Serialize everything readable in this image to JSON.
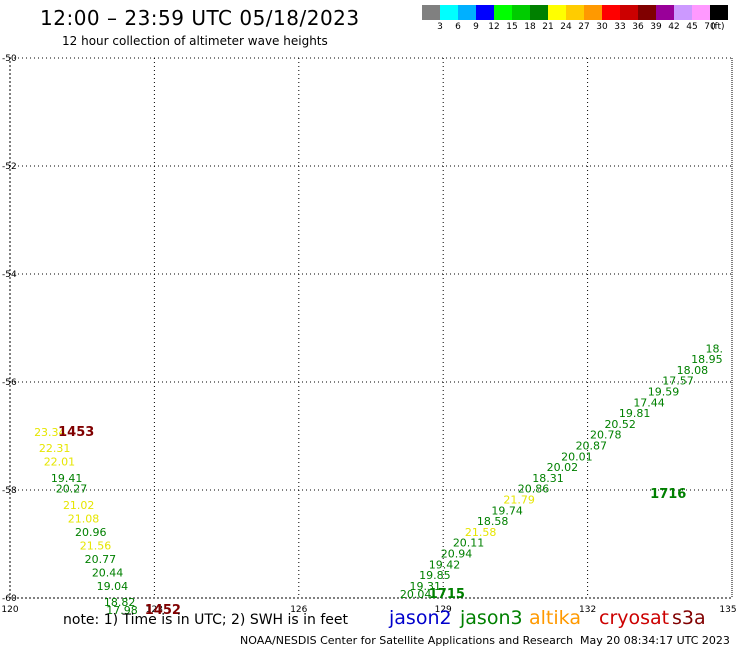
{
  "header": {
    "title": "12:00 – 23:59 UTC 05/18/2023",
    "subtitle": "12 hour collection of altimeter wave heights"
  },
  "colorbar": {
    "swatches": [
      "#808080",
      "#00ffff",
      "#00b0ff",
      "#0000ff",
      "#00ff00",
      "#00cc00",
      "#008000",
      "#ffff00",
      "#ffcc00",
      "#ff9900",
      "#ff0000",
      "#cc0000",
      "#800000",
      "#990099",
      "#cc99ff",
      "#ff99ff",
      "#000000"
    ],
    "labels": [
      "3",
      "6",
      "9",
      "12",
      "15",
      "18",
      "21",
      "24",
      "27",
      "30",
      "33",
      "36",
      "39",
      "42",
      "45",
      "70"
    ],
    "unit": "(ft)"
  },
  "map": {
    "lon_range": [
      120,
      135
    ],
    "lat_range": [
      -60,
      -50
    ],
    "lon_ticks": [
      "120",
      "123",
      "126",
      "129",
      "132",
      "135"
    ],
    "lat_ticks": [
      "-50",
      "-52",
      "-54",
      "-56",
      "-58",
      "-60"
    ],
    "grid": "dotted",
    "track_left": [
      {
        "lon": 120.5,
        "lat": -57.0,
        "v": "23.34",
        "c": "#e6e600"
      },
      {
        "lon": 120.6,
        "lat": -57.3,
        "v": "22.31",
        "c": "#e6e600"
      },
      {
        "lon": 120.7,
        "lat": -57.55,
        "v": "22.01",
        "c": "#e6e600"
      },
      {
        "lon": 120.85,
        "lat": -57.85,
        "v": "19.41",
        "c": "#008000"
      },
      {
        "lon": 120.95,
        "lat": -58.05,
        "v": "20.27",
        "c": "#008000"
      },
      {
        "lon": 121.1,
        "lat": -58.35,
        "v": "21.02",
        "c": "#e6e600"
      },
      {
        "lon": 121.2,
        "lat": -58.6,
        "v": "21.08",
        "c": "#e6e600"
      },
      {
        "lon": 121.35,
        "lat": -58.85,
        "v": "20.96",
        "c": "#008000"
      },
      {
        "lon": 121.45,
        "lat": -59.1,
        "v": "21.56",
        "c": "#e6e600"
      },
      {
        "lon": 121.55,
        "lat": -59.35,
        "v": "20.77",
        "c": "#008000"
      },
      {
        "lon": 121.7,
        "lat": -59.6,
        "v": "20.44",
        "c": "#008000"
      },
      {
        "lon": 121.8,
        "lat": -59.85,
        "v": "19.04",
        "c": "#008000"
      },
      {
        "lon": 121.95,
        "lat": -60.15,
        "v": "18.82",
        "c": "#008000"
      },
      {
        "lon": 122.0,
        "lat": -60.3,
        "v": "17.98",
        "c": "#008000"
      }
    ],
    "track_right": [
      {
        "lon": 128.1,
        "lat": -60.0,
        "v": "20.04",
        "c": "#008000"
      },
      {
        "lon": 128.3,
        "lat": -59.85,
        "v": "19.31",
        "c": "#008000"
      },
      {
        "lon": 128.5,
        "lat": -59.65,
        "v": "19.85",
        "c": "#008000"
      },
      {
        "lon": 128.7,
        "lat": -59.45,
        "v": "19.42",
        "c": "#008000"
      },
      {
        "lon": 128.95,
        "lat": -59.25,
        "v": "20.94",
        "c": "#008000"
      },
      {
        "lon": 129.2,
        "lat": -59.05,
        "v": "20.11",
        "c": "#008000"
      },
      {
        "lon": 129.45,
        "lat": -58.85,
        "v": "21.58",
        "c": "#e6e600"
      },
      {
        "lon": 129.7,
        "lat": -58.65,
        "v": "18.58",
        "c": "#008000"
      },
      {
        "lon": 130.0,
        "lat": -58.45,
        "v": "19.74",
        "c": "#008000"
      },
      {
        "lon": 130.25,
        "lat": -58.25,
        "v": "21.79",
        "c": "#e6e600"
      },
      {
        "lon": 130.55,
        "lat": -58.05,
        "v": "20.86",
        "c": "#008000"
      },
      {
        "lon": 130.85,
        "lat": -57.85,
        "v": "18.31",
        "c": "#008000"
      },
      {
        "lon": 131.15,
        "lat": -57.65,
        "v": "20.02",
        "c": "#008000"
      },
      {
        "lon": 131.45,
        "lat": -57.45,
        "v": "20.01",
        "c": "#008000"
      },
      {
        "lon": 131.75,
        "lat": -57.25,
        "v": "20.87",
        "c": "#008000"
      },
      {
        "lon": 132.05,
        "lat": -57.05,
        "v": "20.78",
        "c": "#008000"
      },
      {
        "lon": 132.35,
        "lat": -56.85,
        "v": "20.52",
        "c": "#008000"
      },
      {
        "lon": 132.65,
        "lat": -56.65,
        "v": "19.81",
        "c": "#008000"
      },
      {
        "lon": 132.95,
        "lat": -56.45,
        "v": "17.44",
        "c": "#008000"
      },
      {
        "lon": 133.25,
        "lat": -56.25,
        "v": "19.59",
        "c": "#008000"
      },
      {
        "lon": 133.55,
        "lat": -56.05,
        "v": "17.57",
        "c": "#008000"
      },
      {
        "lon": 133.85,
        "lat": -55.85,
        "v": "18.08",
        "c": "#008000"
      },
      {
        "lon": 134.15,
        "lat": -55.65,
        "v": "18.95",
        "c": "#008000"
      },
      {
        "lon": 134.45,
        "lat": -55.45,
        "v": "18.",
        "c": "#008000"
      }
    ],
    "time_labels": [
      {
        "lon": 121.0,
        "lat": -57.0,
        "t": "1453",
        "c": "#800000"
      },
      {
        "lon": 122.8,
        "lat": -60.3,
        "t": "1452",
        "c": "#800000"
      },
      {
        "lon": 128.7,
        "lat": -60.0,
        "t": "1715",
        "c": "#008000"
      },
      {
        "lon": 133.3,
        "lat": -58.15,
        "t": "1716",
        "c": "#008000"
      }
    ]
  },
  "footer": {
    "note": "note: 1) Time is in UTC; 2) SWH is in feet",
    "legend": [
      {
        "name": "jason2",
        "color": "#0000cc"
      },
      {
        "name": "jason3",
        "color": "#008000"
      },
      {
        "name": "altika",
        "color": "#ff9900"
      },
      {
        "name": "cryosat",
        "color": "#cc0000"
      },
      {
        "name": "s3a",
        "color": "#800000"
      }
    ],
    "credit": "NOAA/NESDIS Center for Satellite Applications and Research",
    "timestamp": "May 20 08:34:17 UTC 2023"
  }
}
